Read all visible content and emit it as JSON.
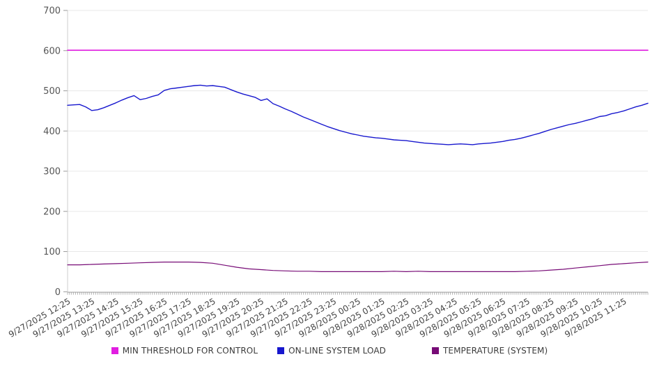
{
  "chart_data": {
    "type": "line",
    "title": "",
    "xlabel": "",
    "ylabel": "",
    "ylim": [
      0,
      700
    ],
    "y_ticks": [
      0,
      100,
      200,
      300,
      400,
      500,
      600,
      700
    ],
    "grid": "horizontal",
    "legend_position": "bottom",
    "hours_span": 24,
    "minor_ticks_per_hour": 12,
    "x_tick_labels": [
      "9/27/2025 12:25",
      "9/27/2025 13:25",
      "9/27/2025 14:25",
      "9/27/2025 15:25",
      "9/27/2025 16:25",
      "9/27/2025 17:25",
      "9/27/2025 18:25",
      "9/27/2025 19:25",
      "9/27/2025 20:25",
      "9/27/2025 21:25",
      "9/27/2025 22:25",
      "9/27/2025 23:25",
      "9/28/2025 00:25",
      "9/28/2025 01:25",
      "9/28/2025 02:25",
      "9/28/2025 03:25",
      "9/28/2025 04:25",
      "9/28/2025 05:25",
      "9/28/2025 06:25",
      "9/28/2025 07:25",
      "9/28/2025 08:25",
      "9/28/2025 09:25",
      "9/28/2025 10:25",
      "9/28/2025 11:25"
    ],
    "series": [
      {
        "name": "MIN THRESHOLD FOR CONTROL",
        "color": "#E11EE1",
        "kind": "constant",
        "value": 601
      },
      {
        "name": "ON-LINE SYSTEM LOAD",
        "color": "#1717CE",
        "kind": "sampled",
        "interval_hours": 0.25,
        "values": [
          464,
          465,
          466,
          460,
          451,
          453,
          458,
          464,
          470,
          477,
          483,
          488,
          478,
          481,
          486,
          490,
          501,
          505,
          507,
          509,
          511,
          513,
          514,
          512,
          513,
          511,
          509,
          503,
          497,
          492,
          488,
          484,
          476,
          480,
          468,
          462,
          455,
          449,
          442,
          435,
          429,
          423,
          417,
          411,
          406,
          401,
          397,
          393,
          390,
          387,
          385,
          383,
          382,
          380,
          378,
          377,
          376,
          374,
          372,
          370,
          369,
          368,
          367,
          366,
          367,
          368,
          367,
          366,
          368,
          369,
          370,
          372,
          374,
          377,
          379,
          382,
          386,
          390,
          394,
          399,
          404,
          408,
          412,
          416,
          419,
          423,
          427,
          431,
          436,
          438,
          443,
          446,
          450,
          455,
          460,
          464,
          469
        ]
      },
      {
        "name": "TEMPERATURE (SYSTEM)",
        "color": "#770B76",
        "kind": "sampled",
        "interval_hours": 0.5,
        "values": [
          67,
          67,
          68,
          69,
          70,
          71,
          72,
          73,
          74,
          74,
          74,
          73,
          71,
          66,
          61,
          57,
          55,
          53,
          52,
          51,
          51,
          50,
          50,
          50,
          50,
          50,
          50,
          51,
          50,
          51,
          50,
          50,
          50,
          50,
          50,
          50,
          50,
          50,
          51,
          52,
          54,
          56,
          59,
          62,
          65,
          68,
          70,
          72,
          74
        ]
      }
    ]
  },
  "legend": {
    "items": [
      {
        "label": "MIN THRESHOLD FOR CONTROL"
      },
      {
        "label": "ON-LINE SYSTEM LOAD"
      },
      {
        "label": "TEMPERATURE (SYSTEM)"
      }
    ]
  }
}
